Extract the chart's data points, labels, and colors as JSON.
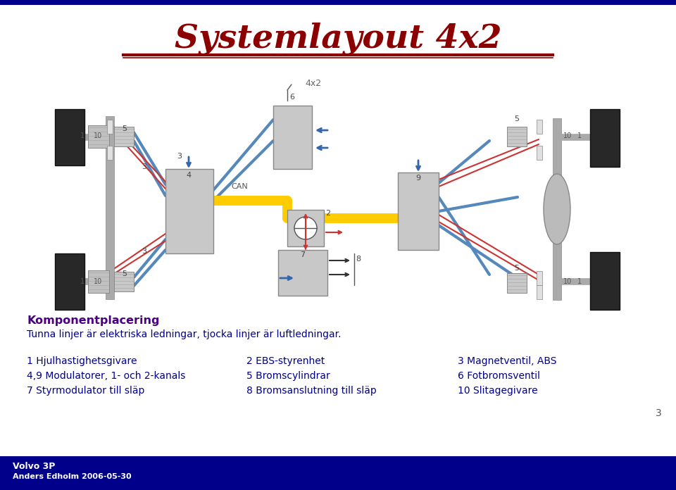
{
  "title": "Systemlayout 4x2",
  "title_color": "#8B0000",
  "title_fontsize": 34,
  "top_bar_color": "#00008B",
  "bottom_bar_color": "#00008B",
  "bottom_text1": "Volvo 3P",
  "bottom_text2": "Anders Edholm 2006-05-30",
  "bottom_text_color": "#FFFFFF",
  "page_number": "3",
  "section_title": "Komponentplacering",
  "section_title_color": "#4B0082",
  "section_body": "Tunna linjer är elektriska ledningar, tjocka linjer är luftledningar.",
  "section_body_color": "#00008B",
  "items_color": "#00008B",
  "items": [
    [
      "1 Hjulhastighetsgivare",
      "2 EBS-styrenhet",
      "3 Magnetventil, ABS"
    ],
    [
      "4,9 Modulatorer, 1- och 2-kanals",
      "5 Bromscylindrar",
      "6 Fotbromsventil"
    ],
    [
      "7 Styrmodulator till släp",
      "8 Bromsanslutning till släp",
      "10 Slitagegivare"
    ]
  ],
  "diagram_label": "4x2",
  "bg_color": "#FFFFFF"
}
